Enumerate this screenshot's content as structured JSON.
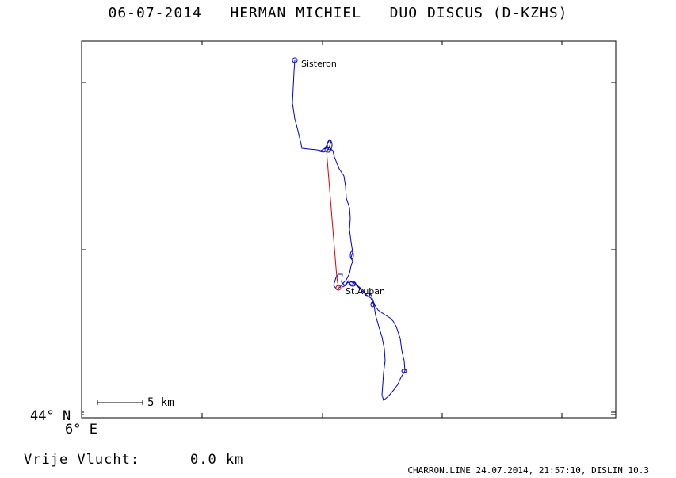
{
  "header": {
    "title": "06-07-2014   HERMAN MICHIEL   DUO DISCUS (D-KZHS)"
  },
  "map": {
    "origin_lat_label": "44° N",
    "origin_lon_label": "6° E",
    "scale_label": "5 km",
    "places": [
      {
        "name": "Sisteron"
      },
      {
        "name": "St.Auban"
      }
    ],
    "colors": {
      "track": "#0000cc",
      "task_line": "#dd0000",
      "frame": "#000000"
    }
  },
  "stats": {
    "free_flight_label": "Vrije Vlucht:",
    "free_flight_value": "0.0 km"
  },
  "footer": {
    "text": "CHARRON.LINE 24.07.2014, 21:57:10, DISLIN 10.3"
  }
}
